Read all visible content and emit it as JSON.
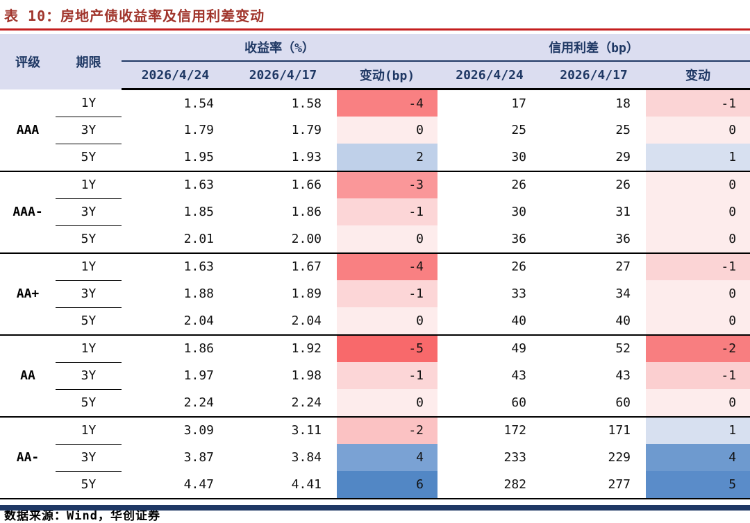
{
  "title": "表 10：房地产债收益率及信用利差变动",
  "header": {
    "rating": "评级",
    "term": "期限",
    "yield_group": "收益率（%）",
    "spread_group": "信用利差（bp）",
    "yield_cols": [
      "2026/4/24",
      "2026/4/17",
      "变动(bp)"
    ],
    "spread_cols": [
      "2026/4/24",
      "2026/4/17",
      "变动"
    ]
  },
  "groups": [
    {
      "rating": "AAA",
      "rows": [
        {
          "term": "1Y",
          "y1": "1.54",
          "y2": "1.58",
          "yc": "-4",
          "yc_color": "#F98082",
          "s1": "17",
          "s2": "18",
          "sc": "-1",
          "sc_color": "#FBD4D5"
        },
        {
          "term": "3Y",
          "y1": "1.79",
          "y2": "1.79",
          "yc": "0",
          "yc_color": "#FDECEC",
          "s1": "25",
          "s2": "25",
          "sc": "0",
          "sc_color": "#FDECEC"
        },
        {
          "term": "5Y",
          "y1": "1.95",
          "y2": "1.93",
          "yc": "2",
          "yc_color": "#BFD0E9",
          "s1": "30",
          "s2": "29",
          "sc": "1",
          "sc_color": "#D7E0F0"
        }
      ]
    },
    {
      "rating": "AAA-",
      "rows": [
        {
          "term": "1Y",
          "y1": "1.63",
          "y2": "1.66",
          "yc": "-3",
          "yc_color": "#FA9799",
          "s1": "26",
          "s2": "26",
          "sc": "0",
          "sc_color": "#FDECEC"
        },
        {
          "term": "3Y",
          "y1": "1.85",
          "y2": "1.86",
          "yc": "-1",
          "yc_color": "#FCD6D7",
          "s1": "30",
          "s2": "31",
          "sc": "0",
          "sc_color": "#FDECEC"
        },
        {
          "term": "5Y",
          "y1": "2.01",
          "y2": "2.00",
          "yc": "0",
          "yc_color": "#FDECEC",
          "s1": "36",
          "s2": "36",
          "sc": "0",
          "sc_color": "#FDECEC"
        }
      ]
    },
    {
      "rating": "AA+",
      "rows": [
        {
          "term": "1Y",
          "y1": "1.63",
          "y2": "1.67",
          "yc": "-4",
          "yc_color": "#F98082",
          "s1": "26",
          "s2": "27",
          "sc": "-1",
          "sc_color": "#FBD4D5"
        },
        {
          "term": "3Y",
          "y1": "1.88",
          "y2": "1.89",
          "yc": "-1",
          "yc_color": "#FCD6D7",
          "s1": "33",
          "s2": "34",
          "sc": "0",
          "sc_color": "#FDECEC"
        },
        {
          "term": "5Y",
          "y1": "2.04",
          "y2": "2.04",
          "yc": "0",
          "yc_color": "#FDECEC",
          "s1": "40",
          "s2": "40",
          "sc": "0",
          "sc_color": "#FDECEC"
        }
      ]
    },
    {
      "rating": "AA",
      "rows": [
        {
          "term": "1Y",
          "y1": "1.86",
          "y2": "1.92",
          "yc": "-5",
          "yc_color": "#F8696B",
          "s1": "49",
          "s2": "52",
          "sc": "-2",
          "sc_color": "#F87E80"
        },
        {
          "term": "3Y",
          "y1": "1.97",
          "y2": "1.98",
          "yc": "-1",
          "yc_color": "#FCD6D7",
          "s1": "43",
          "s2": "43",
          "sc": "-1",
          "sc_color": "#FBCFD0"
        },
        {
          "term": "5Y",
          "y1": "2.24",
          "y2": "2.24",
          "yc": "0",
          "yc_color": "#FDECEC",
          "s1": "60",
          "s2": "60",
          "sc": "0",
          "sc_color": "#FDECEC"
        }
      ]
    },
    {
      "rating": "AA-",
      "rows": [
        {
          "term": "1Y",
          "y1": "3.09",
          "y2": "3.11",
          "yc": "-2",
          "yc_color": "#FBC2C3",
          "s1": "172",
          "s2": "171",
          "sc": "1",
          "sc_color": "#D7E0F0"
        },
        {
          "term": "3Y",
          "y1": "3.87",
          "y2": "3.84",
          "yc": "4",
          "yc_color": "#7AA2D4",
          "s1": "233",
          "s2": "229",
          "sc": "4",
          "sc_color": "#6E9ACF"
        },
        {
          "term": "5Y",
          "y1": "4.47",
          "y2": "4.41",
          "yc": "6",
          "yc_color": "#5287C5",
          "s1": "282",
          "s2": "277",
          "sc": "5",
          "sc_color": "#5A8CC9"
        }
      ]
    }
  ],
  "source_note": "数据来源：Wind，华创证券",
  "colors": {
    "title": "#A0342B",
    "title_rule": "#C41E1E",
    "header_bg": "#DBDDF0",
    "header_text": "#1F3864",
    "bottom_bar": "#1F3864"
  }
}
